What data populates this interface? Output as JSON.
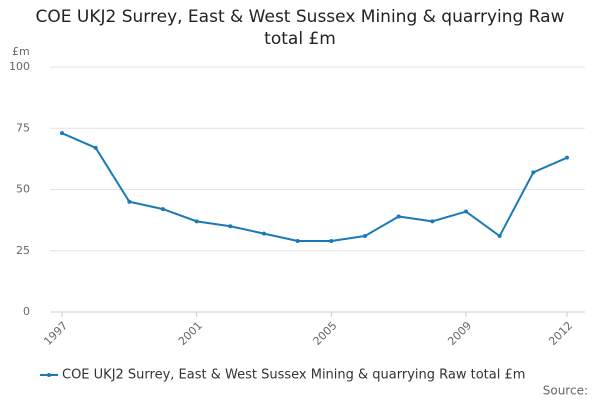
{
  "chart_data": {
    "type": "line",
    "title": "COE UKJ2 Surrey, East & West Sussex Mining & quarrying Raw total £m",
    "y_label": "£m",
    "source": "Source:",
    "x": [
      1997,
      1998,
      1999,
      2000,
      2001,
      2002,
      2003,
      2004,
      2005,
      2006,
      2007,
      2008,
      2009,
      2010,
      2011,
      2012
    ],
    "xlim": [
      1997,
      2012
    ],
    "xticks": [
      1997,
      2001,
      2005,
      2009,
      2012
    ],
    "ylim": [
      0,
      100
    ],
    "yticks": [
      0,
      25,
      50,
      75,
      100
    ],
    "grid": true,
    "legend": "bottom",
    "series": [
      {
        "name": "COE UKJ2 Surrey, East & West Sussex Mining & quarrying Raw total £m",
        "color": "#1a7ab5",
        "values": [
          73,
          67,
          45,
          42,
          37,
          35,
          32,
          29,
          29,
          31,
          39,
          37,
          41,
          31,
          57,
          63
        ]
      }
    ]
  }
}
